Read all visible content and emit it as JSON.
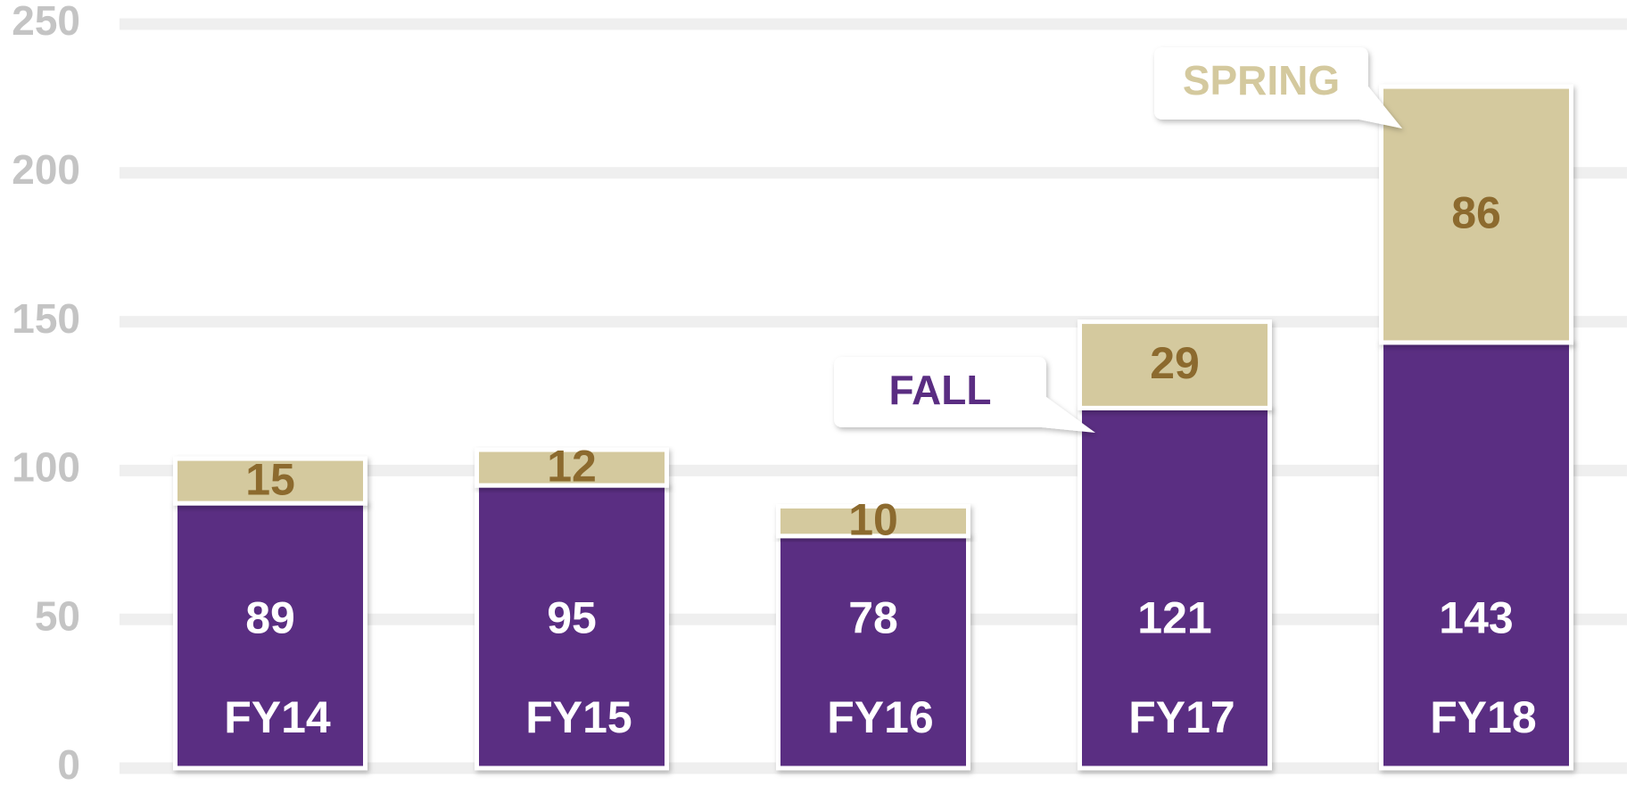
{
  "chart_data": {
    "type": "bar",
    "stacked": true,
    "categories": [
      "FY14",
      "FY15",
      "FY16",
      "FY17",
      "FY18"
    ],
    "series": [
      {
        "name": "FALL",
        "color": "#5a2d82",
        "label_color": "#ffffff",
        "values": [
          89,
          95,
          78,
          121,
          143
        ]
      },
      {
        "name": "SPRING",
        "color": "#d4c99e",
        "label_color": "#8c6a2e",
        "values": [
          15,
          12,
          10,
          29,
          86
        ]
      }
    ],
    "ylim": [
      0,
      250
    ],
    "yticks": [
      0,
      50,
      100,
      150,
      200,
      250
    ],
    "grid": true
  }
}
